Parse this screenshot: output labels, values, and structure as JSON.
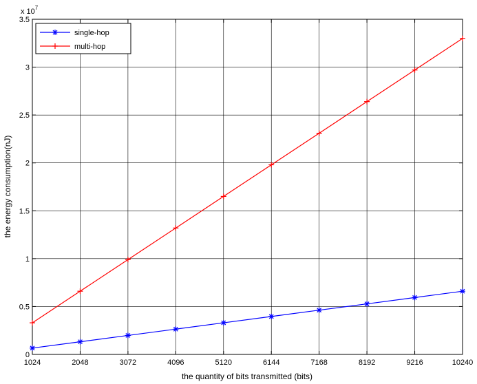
{
  "chart_data": {
    "type": "line",
    "xlabel": "the quantity of bits transmitted (bits)",
    "ylabel": "the energy consumption(nJ)",
    "exponent_label": "x 10",
    "exponent_power": "7",
    "x": [
      1024,
      2048,
      3072,
      4096,
      5120,
      6144,
      7168,
      8192,
      9216,
      10240
    ],
    "xlim": [
      1024,
      10240
    ],
    "ylim": [
      0,
      3.5
    ],
    "x_ticks": [
      "1024",
      "2048",
      "3072",
      "4096",
      "5120",
      "6144",
      "7168",
      "8192",
      "9216",
      "10240"
    ],
    "y_ticks": [
      "0",
      "0.5",
      "1",
      "1.5",
      "2",
      "2.5",
      "3",
      "3.5"
    ],
    "grid": true,
    "legend_position": "top-left",
    "series": [
      {
        "name": "single-hop",
        "color": "#0000ff",
        "marker": "asterisk",
        "values": [
          0.066,
          0.132,
          0.198,
          0.264,
          0.33,
          0.396,
          0.462,
          0.528,
          0.594,
          0.66
        ]
      },
      {
        "name": "multi-hop",
        "color": "#ff0000",
        "marker": "plus",
        "values": [
          0.33,
          0.66,
          0.99,
          1.32,
          1.65,
          1.98,
          2.31,
          2.64,
          2.97,
          3.3
        ]
      }
    ]
  }
}
